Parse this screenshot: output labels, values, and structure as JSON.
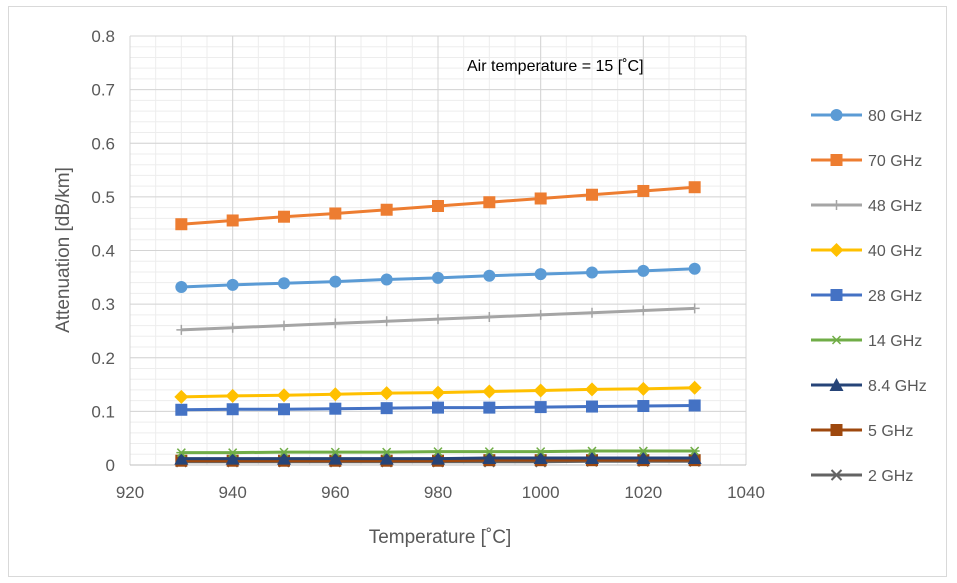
{
  "chart_data": {
    "type": "line",
    "xlabel": "Temperature [˚C]",
    "ylabel": "Attenuation [dB/km]",
    "annotation": "Air temperature  = 15 [˚C]",
    "xlim": [
      920,
      1040
    ],
    "ylim": [
      0,
      0.8
    ],
    "xticks": [
      "920",
      "940",
      "960",
      "980",
      "1000",
      "1020",
      "1040"
    ],
    "yticks": [
      "0",
      "0.1",
      "0.2",
      "0.3",
      "0.4",
      "0.5",
      "0.6",
      "0.7",
      "0.8"
    ],
    "grid": true,
    "legend_position": "right",
    "x": [
      930,
      940,
      950,
      960,
      970,
      980,
      990,
      1000,
      1010,
      1020,
      1030
    ],
    "series": [
      {
        "name": "80 GHz",
        "color": "#5b9bd5",
        "marker": "circle",
        "values": [
          0.332,
          0.336,
          0.339,
          0.342,
          0.346,
          0.349,
          0.353,
          0.356,
          0.359,
          0.362,
          0.366
        ]
      },
      {
        "name": "70 GHz",
        "color": "#ed7d31",
        "marker": "square",
        "values": [
          0.449,
          0.456,
          0.463,
          0.469,
          0.476,
          0.483,
          0.49,
          0.497,
          0.504,
          0.511,
          0.518
        ]
      },
      {
        "name": "48 GHz",
        "color": "#a5a5a5",
        "marker": "plus",
        "values": [
          0.252,
          0.256,
          0.26,
          0.264,
          0.268,
          0.272,
          0.276,
          0.28,
          0.284,
          0.288,
          0.292
        ]
      },
      {
        "name": "40 GHz",
        "color": "#ffc000",
        "marker": "diamond",
        "values": [
          0.127,
          0.129,
          0.13,
          0.132,
          0.134,
          0.135,
          0.137,
          0.139,
          0.141,
          0.142,
          0.144
        ]
      },
      {
        "name": "28 GHz",
        "color": "#4472c4",
        "marker": "square",
        "values": [
          0.103,
          0.104,
          0.104,
          0.105,
          0.106,
          0.107,
          0.107,
          0.108,
          0.109,
          0.11,
          0.111
        ]
      },
      {
        "name": "14 GHz",
        "color": "#70ad47",
        "marker": "asterisk",
        "values": [
          0.023,
          0.023,
          0.024,
          0.024,
          0.024,
          0.025,
          0.025,
          0.025,
          0.026,
          0.026,
          0.026
        ]
      },
      {
        "name": "8.4 GHz",
        "color": "#264478",
        "marker": "triangle",
        "values": [
          0.012,
          0.012,
          0.012,
          0.012,
          0.012,
          0.012,
          0.013,
          0.013,
          0.013,
          0.013,
          0.013
        ]
      },
      {
        "name": "5 GHz",
        "color": "#9e480e",
        "marker": "square",
        "values": [
          0.008,
          0.008,
          0.008,
          0.008,
          0.008,
          0.008,
          0.009,
          0.009,
          0.009,
          0.009,
          0.009
        ]
      },
      {
        "name": "2 GHz",
        "color": "#636363",
        "marker": "x",
        "values": [
          0.006,
          0.006,
          0.006,
          0.006,
          0.006,
          0.006,
          0.006,
          0.006,
          0.007,
          0.007,
          0.007
        ]
      }
    ]
  }
}
